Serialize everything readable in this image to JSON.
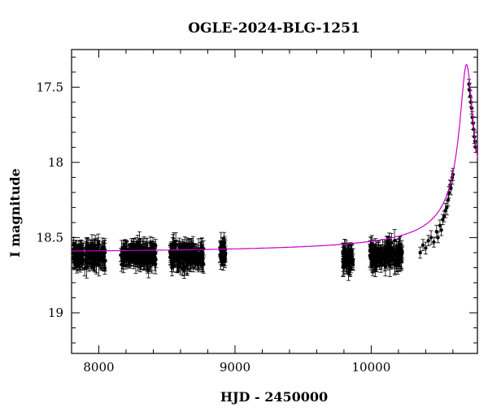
{
  "chart_data": {
    "type": "scatter",
    "title": "OGLE-2024-BLG-1251",
    "xlabel": "HJD - 2450000",
    "ylabel": "I magnitude",
    "xlim": [
      7800,
      10780
    ],
    "ylim": [
      17.25,
      19.27
    ],
    "y_inverted": true,
    "x_ticks": [
      8000,
      9000,
      10000
    ],
    "y_ticks": [
      17.5,
      18,
      18.5,
      19
    ],
    "x_tick_labels": [
      "8000",
      "9000",
      "10000"
    ],
    "y_tick_labels": [
      "17.5",
      "18",
      "18.5",
      "19"
    ],
    "baseline_magnitude": 18.61,
    "peak": {
      "x": 10700,
      "y": 17.35
    },
    "model_line_color": "#cc00cc",
    "point_color": "#000000",
    "observation_seasons": [
      {
        "x_range": [
          7810,
          8050
        ],
        "mean_mag": 18.62,
        "scatter": 0.05
      },
      {
        "x_range": [
          8160,
          8420
        ],
        "mean_mag": 18.61,
        "scatter": 0.05
      },
      {
        "x_range": [
          8520,
          8770
        ],
        "mean_mag": 18.62,
        "scatter": 0.05
      },
      {
        "x_range": [
          8890,
          8930
        ],
        "mean_mag": 18.6,
        "scatter": 0.05
      },
      {
        "x_range": [
          9790,
          9870
        ],
        "mean_mag": 18.64,
        "scatter": 0.06
      },
      {
        "x_range": [
          9990,
          10230
        ],
        "mean_mag": 18.62,
        "scatter": 0.05
      }
    ],
    "rising_points": [
      [
        10360,
        18.6
      ],
      [
        10380,
        18.55
      ],
      [
        10400,
        18.57
      ],
      [
        10420,
        18.52
      ],
      [
        10440,
        18.5
      ],
      [
        10460,
        18.53
      ],
      [
        10480,
        18.46
      ],
      [
        10490,
        18.5
      ],
      [
        10505,
        18.42
      ],
      [
        10515,
        18.45
      ],
      [
        10525,
        18.38
      ],
      [
        10535,
        18.36
      ],
      [
        10545,
        18.32
      ],
      [
        10555,
        18.3
      ],
      [
        10565,
        18.25
      ],
      [
        10570,
        18.2
      ],
      [
        10580,
        18.15
      ],
      [
        10585,
        18.17
      ],
      [
        10595,
        18.1
      ],
      [
        10600,
        18.08
      ],
      [
        10718,
        17.48
      ],
      [
        10722,
        17.52
      ],
      [
        10728,
        17.56
      ],
      [
        10732,
        17.6
      ],
      [
        10738,
        17.64
      ],
      [
        10742,
        17.7
      ],
      [
        10748,
        17.74
      ],
      [
        10752,
        17.78
      ],
      [
        10758,
        17.83
      ],
      [
        10762,
        17.86
      ],
      [
        10768,
        17.9
      ]
    ]
  }
}
